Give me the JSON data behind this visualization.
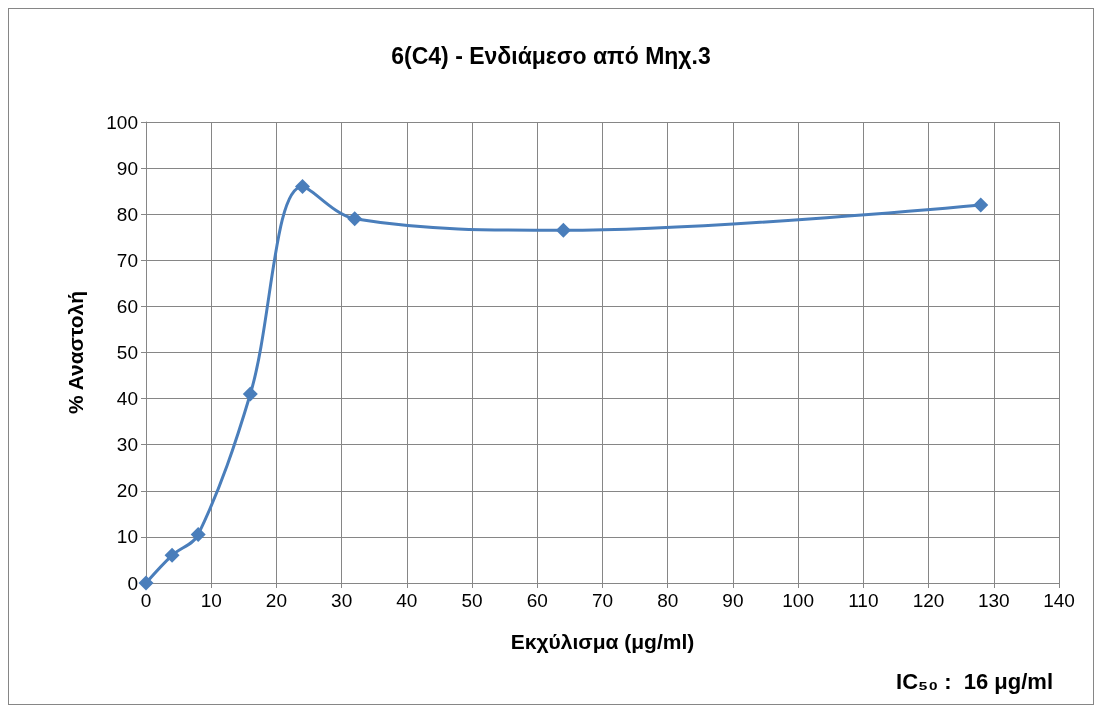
{
  "chart_data": {
    "type": "line",
    "title": "6(C4) - Ενδιάμεσο από Μηχ.3",
    "xlabel": "Εκχύλισμα (μg/ml)",
    "ylabel": "% Αναστολή",
    "x": [
      0,
      4,
      8,
      16,
      24,
      32,
      64,
      128
    ],
    "series": [
      {
        "color": "#4a7ebb",
        "values": [
          0,
          6,
          10.5,
          41,
          86,
          79,
          76.5,
          82
        ]
      }
    ],
    "xlim": [
      0,
      140
    ],
    "xticks": [
      0,
      10,
      20,
      30,
      40,
      50,
      60,
      70,
      80,
      90,
      100,
      110,
      120,
      130,
      140
    ],
    "ylim": [
      0,
      100
    ],
    "yticks": [
      0,
      10,
      20,
      30,
      40,
      50,
      60,
      70,
      80,
      90,
      100
    ],
    "grid": true,
    "marker": "diamond",
    "line_style": "solid",
    "annotations": [
      "IC₅₀ :  16 μg/ml"
    ]
  }
}
